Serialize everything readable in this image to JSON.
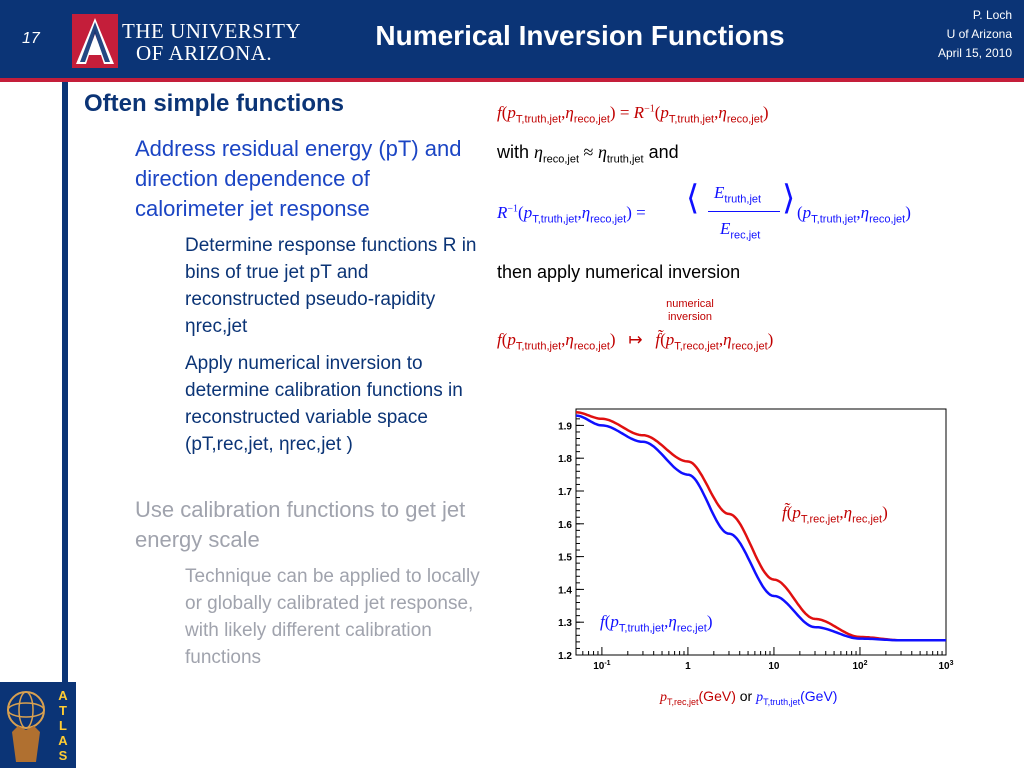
{
  "header": {
    "slide_number": "17",
    "university_line1": "THE UNIVERSITY",
    "university_line2": "OF ARIZONA.",
    "title": "Numerical Inversion Functions",
    "author": "P. Loch",
    "institution": "U of Arizona",
    "date": "April 15, 2010"
  },
  "bullets": {
    "main": "Often simple functions",
    "sub1": "Address residual energy (pT) and direction dependence of calorimeter jet response",
    "sub1_a": "Determine response functions R in bins of true jet pT  and reconstructed pseudo-rapidity ηrec,jet",
    "sub1_b": "Apply numerical inversion to determine calibration functions in reconstructed variable space (pT,rec,jet, ηrec,jet )",
    "sub2": "Use calibration functions to get jet energy scale",
    "sub2_a": "Technique can be applied to locally or globally calibrated jet response, with likely different calibration functions"
  },
  "equations": {
    "with": "with",
    "and": "and",
    "then": "then apply numerical inversion",
    "inversion_label_1": "numerical",
    "inversion_label_2": "inversion",
    "or": "or",
    "xaxis_red": "(GeV)",
    "xaxis_blue": "(GeV)"
  },
  "logo": {
    "atlas": "ATLAS"
  },
  "chart_data": {
    "type": "line",
    "x_scale": "log",
    "xlim": [
      0.05,
      1000
    ],
    "ylim": [
      1.2,
      1.95
    ],
    "y_ticks": [
      "1.2",
      "1.3",
      "1.4",
      "1.5",
      "1.6",
      "1.7",
      "1.8",
      "1.9"
    ],
    "x_ticks": [
      "10-1",
      "1",
      "10",
      "102",
      "103"
    ],
    "series": [
      {
        "name": "f~(pT,rec,jet, ηrec,jet)",
        "color": "#e01010",
        "x": [
          0.05,
          0.1,
          0.3,
          1,
          3,
          10,
          30,
          100,
          300,
          1000
        ],
        "y": [
          1.94,
          1.92,
          1.87,
          1.79,
          1.63,
          1.43,
          1.31,
          1.255,
          1.245,
          1.245
        ]
      },
      {
        "name": "f(pT,truth,jet, ηrec,jet)",
        "color": "#1010ff",
        "x": [
          0.05,
          0.1,
          0.3,
          1,
          3,
          10,
          30,
          100,
          300,
          1000
        ],
        "y": [
          1.93,
          1.9,
          1.85,
          1.75,
          1.57,
          1.38,
          1.285,
          1.25,
          1.245,
          1.245
        ]
      }
    ]
  }
}
